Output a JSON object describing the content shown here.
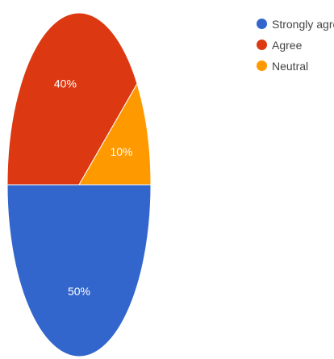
{
  "chart_data": {
    "type": "pie",
    "title": "",
    "categories": [
      "Strongly agree",
      "Agree",
      "Neutral"
    ],
    "values": [
      50,
      40,
      10
    ],
    "data_labels": [
      "50%",
      "40%",
      "10%"
    ],
    "colors": [
      "#3366cc",
      "#dc3912",
      "#ff9900"
    ],
    "legend": {
      "placement": "top-right",
      "items": [
        {
          "label": "Strongly agree",
          "color": "#3366cc"
        },
        {
          "label": "Agree",
          "color": "#dc3912"
        },
        {
          "label": "Neutral",
          "color": "#ff9900"
        }
      ]
    }
  }
}
